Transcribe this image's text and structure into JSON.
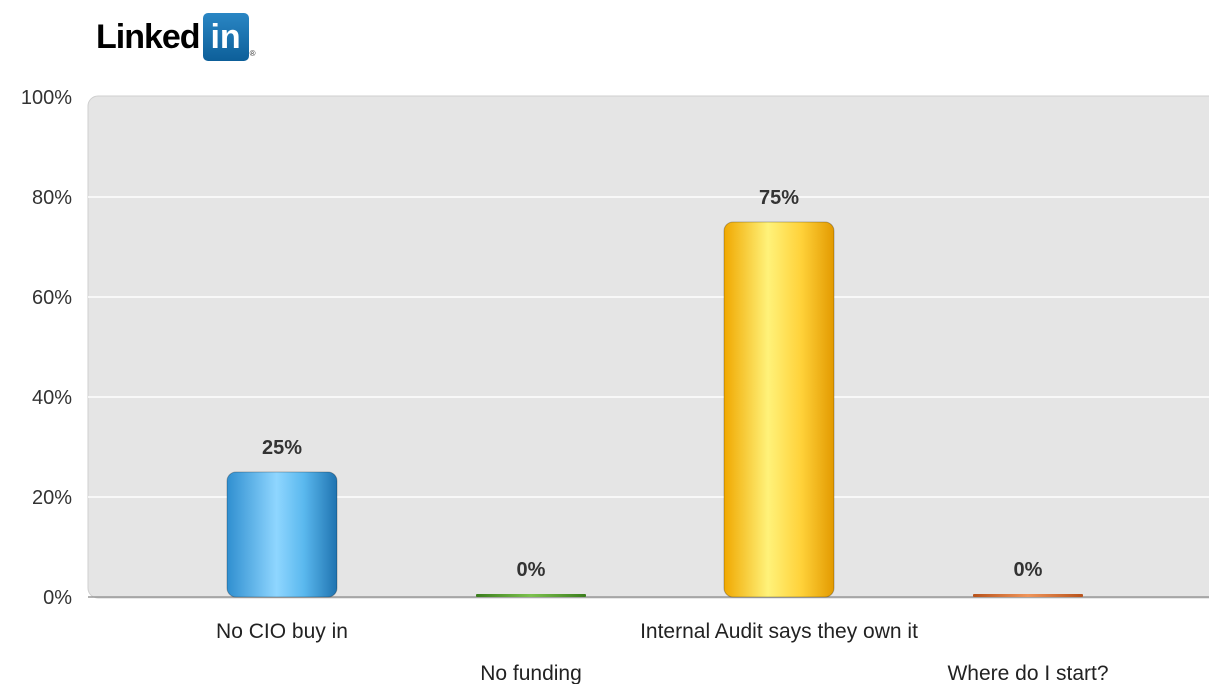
{
  "logo": {
    "word": "Linked",
    "box_text": "in",
    "reg": "®"
  },
  "chart_data": {
    "type": "bar",
    "categories": [
      "No CIO buy in",
      "No funding",
      "Internal Audit says they own it",
      "Where do I start?"
    ],
    "values": [
      25,
      0,
      75,
      0
    ],
    "data_labels": [
      "25%",
      "0%",
      "75%",
      "0%"
    ],
    "yticks": [
      0,
      20,
      40,
      60,
      80,
      100
    ],
    "ytick_labels": [
      "0%",
      "20%",
      "40%",
      "60%",
      "80%",
      "100%"
    ],
    "ylim": [
      0,
      100
    ],
    "grid": true,
    "title": "",
    "xlabel": "",
    "ylabel": "",
    "colors": [
      "#5ab8ee",
      "#4c9a2a",
      "#ffcc22",
      "#d9692a"
    ],
    "plot_background": "#e5e5e5"
  }
}
